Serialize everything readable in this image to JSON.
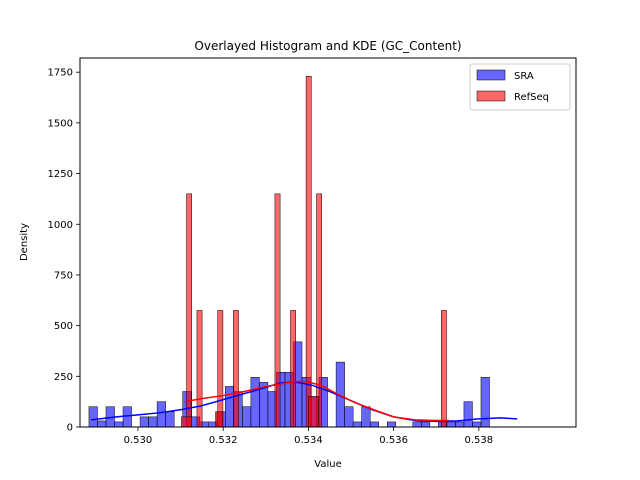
{
  "chart_data": {
    "type": "bar",
    "title": "Overlayed Histogram and KDE (GC_Content)",
    "xlabel": "Value",
    "ylabel": "Density",
    "xlim": [
      0.52864,
      0.54028
    ],
    "ylim": [
      0,
      1820
    ],
    "xticks": [
      0.53,
      0.532,
      0.534,
      0.536,
      0.538
    ],
    "xtick_labels": [
      "0.530",
      "0.532",
      "0.534",
      "0.536",
      "0.538"
    ],
    "yticks": [
      0,
      250,
      500,
      750,
      1000,
      1250,
      1500,
      1750
    ],
    "ytick_labels": [
      "0",
      "250",
      "500",
      "750",
      "1000",
      "1250",
      "1500",
      "1750"
    ],
    "grid": false,
    "legend_position": "top-right",
    "series": [
      {
        "name": "SRA",
        "color": "#0000ff",
        "bin_start": 0.52885,
        "bin_width": 0.0002,
        "values": [
          100,
          30,
          100,
          25,
          100,
          0,
          50,
          50,
          125,
          75,
          0,
          175,
          50,
          25,
          25,
          75,
          200,
          175,
          100,
          245,
          220,
          175,
          270,
          270,
          420,
          245,
          150,
          245,
          0,
          320,
          100,
          25,
          100,
          25,
          0,
          25,
          0,
          0,
          25,
          25,
          0,
          25,
          25,
          25,
          125,
          25,
          245
        ]
      },
      {
        "name": "RefSeq",
        "color": "#ff0000",
        "bin_start": 0.53114,
        "bin_width": 0.000122,
        "values": [
          1150,
          0,
          575,
          0,
          0,
          0,
          575,
          0,
          0,
          575,
          0,
          0,
          0,
          0,
          0,
          0,
          0,
          1150,
          0,
          0,
          575,
          0,
          0,
          1730,
          0,
          1150,
          0,
          0,
          0,
          0,
          0,
          0,
          0,
          0,
          0,
          0,
          0,
          0,
          0,
          0,
          0,
          0,
          0,
          0,
          0,
          0,
          0,
          0,
          0,
          575
        ],
        "extra_bins": [
          {
            "x0": 0.53102,
            "width": 0.00024,
            "value": 50
          },
          {
            "x0": 0.53182,
            "width": 0.00017,
            "value": 75
          },
          {
            "x0": 0.534,
            "width": 0.00024,
            "value": 150
          }
        ]
      }
    ],
    "kde": [
      {
        "name": "SRA",
        "color": "#0000ff",
        "x": [
          0.5289,
          0.5295,
          0.53,
          0.5305,
          0.531,
          0.5315,
          0.532,
          0.5325,
          0.533,
          0.5333,
          0.5336,
          0.5338,
          0.5341,
          0.5345,
          0.535,
          0.5355,
          0.536,
          0.5365,
          0.537,
          0.5375,
          0.538,
          0.5385,
          0.5389
        ],
        "y": [
          35,
          50,
          60,
          70,
          85,
          105,
          135,
          165,
          195,
          215,
          222,
          218,
          205,
          175,
          130,
          85,
          50,
          32,
          28,
          30,
          40,
          45,
          40
        ]
      },
      {
        "name": "RefSeq",
        "color": "#ff0000",
        "x": [
          0.5311,
          0.5315,
          0.532,
          0.5325,
          0.533,
          0.5333,
          0.5336,
          0.5338,
          0.534,
          0.5343,
          0.5347,
          0.5351,
          0.5356,
          0.536,
          0.5365,
          0.537,
          0.5373
        ],
        "y": [
          125,
          140,
          155,
          175,
          200,
          210,
          222,
          225,
          222,
          205,
          160,
          120,
          80,
          50,
          35,
          32,
          32
        ]
      }
    ]
  }
}
